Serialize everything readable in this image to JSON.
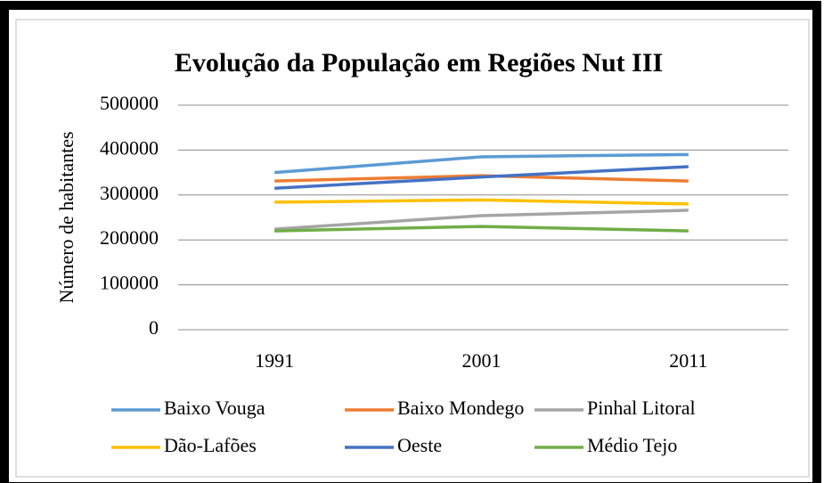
{
  "chart_data": {
    "type": "line",
    "title": "Evolução da População  em Regiões Nut III",
    "y_label": "Número de habitantes",
    "categories": [
      "1991",
      "2001",
      "2011"
    ],
    "series": [
      {
        "name": "Baixo Vouga",
        "color": "#5b9bd5",
        "values": [
          350000,
          385000,
          390000
        ]
      },
      {
        "name": "Baixo Mondego",
        "color": "#ed7d31",
        "values": [
          331000,
          343000,
          331000
        ]
      },
      {
        "name": "Pinhal Litoral",
        "color": "#a5a5a5",
        "values": [
          224000,
          254000,
          266000
        ]
      },
      {
        "name": "Dão-Lafões",
        "color": "#ffc000",
        "values": [
          284000,
          289000,
          280000
        ]
      },
      {
        "name": "Oeste",
        "color": "#4472c4",
        "values": [
          315000,
          340000,
          363000
        ]
      },
      {
        "name": "Médio Tejo",
        "color": "#70ad47",
        "values": [
          220000,
          230000,
          220000
        ]
      }
    ],
    "ylim": [
      0,
      500000
    ],
    "yticks": [
      0,
      100000,
      200000,
      300000,
      400000,
      500000
    ],
    "grid": true,
    "legend": "bottom"
  }
}
